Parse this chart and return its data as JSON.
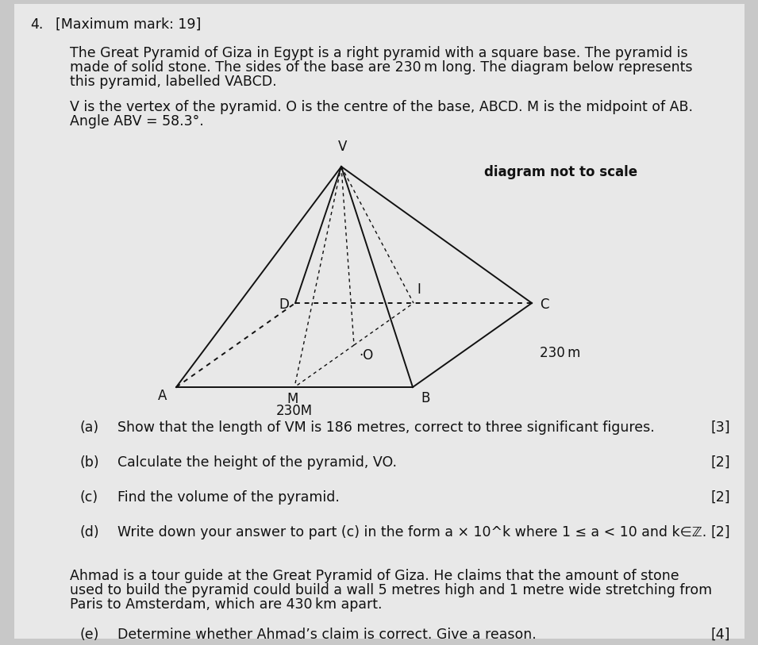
{
  "question_number": "4.",
  "max_mark": "[Maximum mark: 19]",
  "intro_line1": "The Great Pyramid of Giza in Egypt is a right pyramid with a square base. The pyramid is",
  "intro_line2": "made of solid stone. The sides of the base are 230 m long. The diagram below represents",
  "intro_line3": "this pyramid, labelled VABCD.",
  "setup_line1": "V is the vertex of the pyramid. O is the centre of the base, ABCD. M is the midpoint of AB.",
  "setup_line2": "Angle ABV = 58.3°.",
  "diagram_note": "diagram not to scale",
  "label_230m": "230 m",
  "label_M": "M",
  "label_230M": "230M",
  "label_V": "V",
  "label_A": "A",
  "label_B": "B",
  "label_C": "C",
  "label_D": "D",
  "label_O": "O",
  "label_I": "I",
  "part_a_letter": "(a)",
  "part_a_text": "Show that the length of VM is 186 metres, correct to three significant figures.",
  "part_a_marks": "[3]",
  "part_b_letter": "(b)",
  "part_b_text": "Calculate the height of the pyramid, VO.",
  "part_b_marks": "[2]",
  "part_c_letter": "(c)",
  "part_c_text": "Find the volume of the pyramid.",
  "part_c_marks": "[2]",
  "part_d_letter": "(d)",
  "part_d_text": "Write down your answer to part (c) in the form ",
  "part_d_math": "a × 10^k",
  "part_d_text2": " where ",
  "part_d_ineq": "1 ≤ a < 10",
  "part_d_text3": " and ",
  "part_d_kz": "k∈ℤ.",
  "part_d_marks": "[2]",
  "ahmad_line1": "Ahmad is a tour guide at the Great Pyramid of Giza. He claims that the amount of stone",
  "ahmad_line2": "used to build the pyramid could build a wall 5 metres high and 1 metre wide stretching from",
  "ahmad_line3": "Paris to Amsterdam, which are 430 km apart.",
  "part_e_letter": "(e)",
  "part_e_text": "Determine whether Ahmad’s claim is correct. Give a reason.",
  "part_e_marks": "[4]",
  "bg_color": "#c8c8c8",
  "paper_color": "#e8e8e8",
  "text_color": "#111111",
  "line_color": "#111111"
}
